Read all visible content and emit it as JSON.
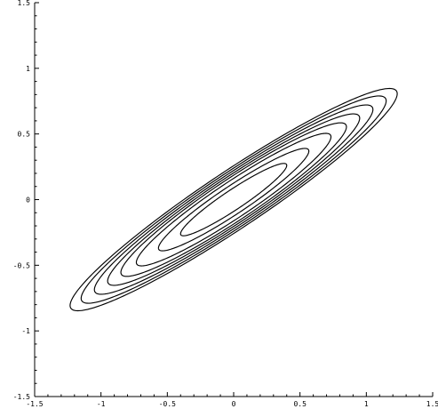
{
  "chart_data": {
    "type": "contour",
    "title": "",
    "xlabel": "",
    "ylabel": "",
    "xlim": [
      -1.5,
      1.5
    ],
    "ylim": [
      -1.5,
      1.5
    ],
    "grid": false,
    "x_ticks": [
      -1.5,
      -1,
      -0.5,
      0,
      0.5,
      1,
      1.5
    ],
    "x_tick_labels": [
      "-1.5",
      "-1",
      "-0.5",
      "0",
      "0.5",
      "1",
      "1.5"
    ],
    "y_ticks": [
      -1.5,
      -1,
      -0.5,
      0,
      0.5,
      1,
      1.5
    ],
    "y_tick_labels": [
      "-1.5",
      "-1",
      "-0.5",
      "0",
      "0.5",
      "1",
      "1.5"
    ],
    "series": [
      {
        "kind": "ellipse_contours",
        "center": [
          0,
          0
        ],
        "major_axis_angle_deg": 34,
        "semi_axes": [
          [
            0.48,
            0.075
          ],
          [
            0.68,
            0.105
          ],
          [
            0.88,
            0.135
          ],
          [
            1.02,
            0.155
          ],
          [
            1.14,
            0.17
          ],
          [
            1.26,
            0.185
          ],
          [
            1.38,
            0.2
          ],
          [
            1.48,
            0.215
          ]
        ]
      }
    ]
  }
}
